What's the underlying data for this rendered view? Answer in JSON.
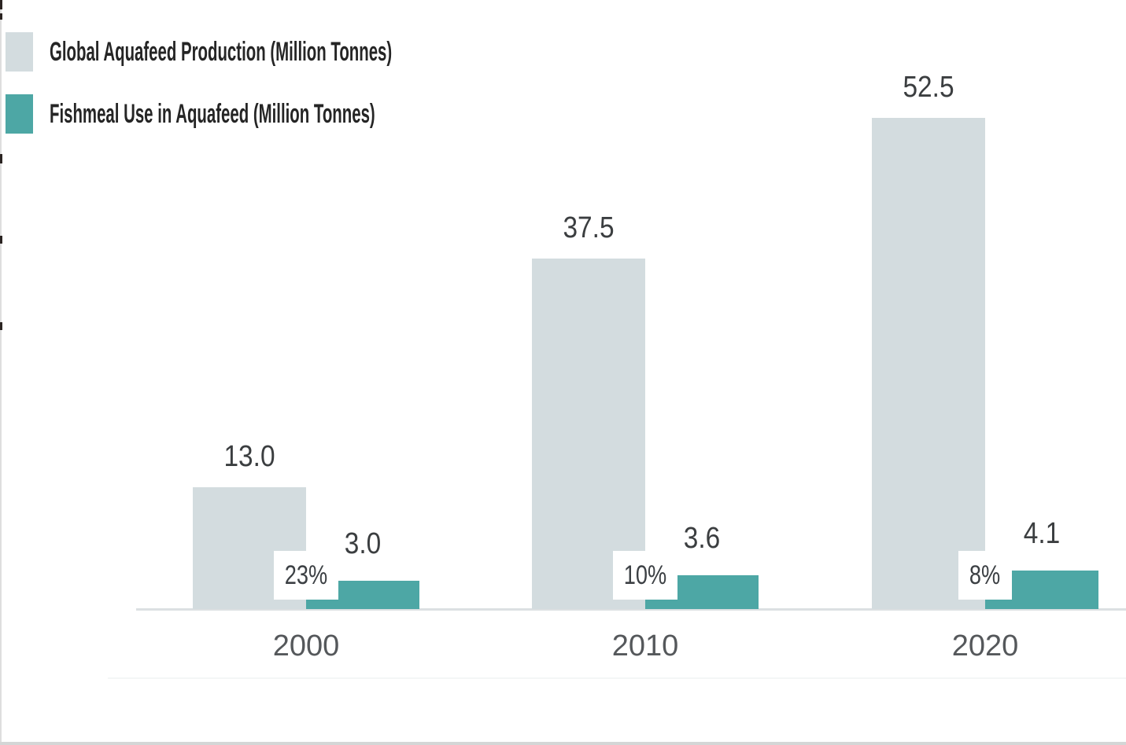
{
  "legend": {
    "items": [
      {
        "label": "Global Aquafeed Production (Million Tonnes)",
        "color": "#d3dcdf"
      },
      {
        "label": "Fishmeal Use in Aquafeed (Million Tonnes)",
        "color": "#4da7a5"
      }
    ]
  },
  "chart_data": {
    "type": "bar",
    "categories": [
      "2000",
      "2010",
      "2020"
    ],
    "series": [
      {
        "name": "Global Aquafeed Production (Million Tonnes)",
        "color": "#d3dcdf",
        "values": [
          13.0,
          37.5,
          52.5
        ],
        "value_labels": [
          "13.0",
          "37.5",
          "52.5"
        ]
      },
      {
        "name": "Fishmeal Use in Aquafeed (Million Tonnes)",
        "color": "#4da7a5",
        "values": [
          3.0,
          3.6,
          4.1
        ],
        "value_labels": [
          "3.0",
          "3.6",
          "4.1"
        ]
      }
    ],
    "percent_labels": [
      "23%",
      "10%",
      "8%"
    ],
    "ylim": [
      0,
      55
    ],
    "grid": false,
    "legend_position": "top-left",
    "colors": {
      "axis_line": "#dce0e2",
      "value_text": "#3b3e40",
      "year_text": "#55585b",
      "percent_text": "#3c4044",
      "legend_text": "#252525"
    }
  }
}
